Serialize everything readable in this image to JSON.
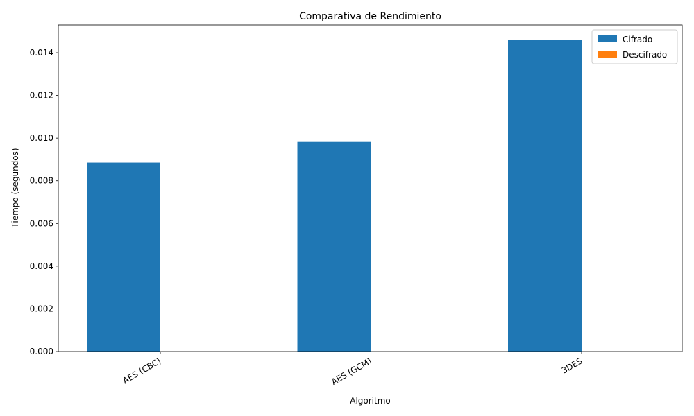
{
  "chart_data": {
    "type": "bar",
    "title": "Comparativa de Rendimiento",
    "xlabel": "Algoritmo",
    "ylabel": "Tiempo (segundos)",
    "categories": [
      "AES (CBC)",
      "AES (GCM)",
      "3DES"
    ],
    "series": [
      {
        "name": "Cifrado",
        "values": [
          0.00885,
          0.00982,
          0.01459
        ],
        "color": "#1f77b4"
      },
      {
        "name": "Descifrado",
        "values": [
          0.0,
          0.0,
          0.0
        ],
        "color": "#ff7f0e"
      }
    ],
    "ylim": [
      0,
      0.0153
    ],
    "yticks": [
      0.0,
      0.002,
      0.004,
      0.006,
      0.008,
      0.01,
      0.012,
      0.014
    ],
    "ytick_labels": [
      "0.000",
      "0.002",
      "0.004",
      "0.006",
      "0.008",
      "0.010",
      "0.012",
      "0.014"
    ],
    "grid": false,
    "legend_position": "top-right"
  }
}
